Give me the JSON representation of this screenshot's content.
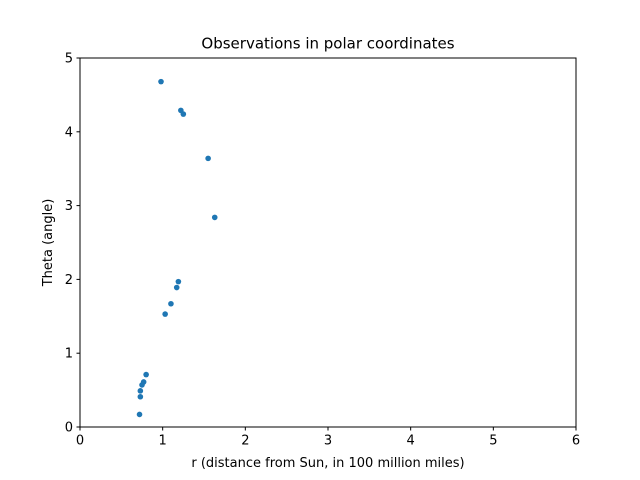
{
  "chart_data": {
    "type": "scatter",
    "title": "Observations in polar coordinates",
    "xlabel": "r (distance from Sun, in 100 million miles)",
    "ylabel": "Theta (angle)",
    "xlim": [
      0,
      6
    ],
    "ylim": [
      0,
      5
    ],
    "xticks": [
      "0",
      "1",
      "2",
      "3",
      "4",
      "5",
      "6"
    ],
    "yticks": [
      "0",
      "1",
      "2",
      "3",
      "4",
      "5"
    ],
    "grid": false,
    "legend": "none",
    "color": "#1f77b4",
    "points": [
      {
        "x": 0.72,
        "y": 0.17
      },
      {
        "x": 0.73,
        "y": 0.41
      },
      {
        "x": 0.73,
        "y": 0.49
      },
      {
        "x": 0.75,
        "y": 0.57
      },
      {
        "x": 0.77,
        "y": 0.61
      },
      {
        "x": 0.8,
        "y": 0.71
      },
      {
        "x": 1.03,
        "y": 1.53
      },
      {
        "x": 1.1,
        "y": 1.67
      },
      {
        "x": 1.17,
        "y": 1.89
      },
      {
        "x": 1.19,
        "y": 1.97
      },
      {
        "x": 0.98,
        "y": 4.68
      },
      {
        "x": 1.22,
        "y": 4.29
      },
      {
        "x": 1.25,
        "y": 4.24
      },
      {
        "x": 1.55,
        "y": 3.64
      },
      {
        "x": 1.63,
        "y": 2.84
      }
    ]
  }
}
